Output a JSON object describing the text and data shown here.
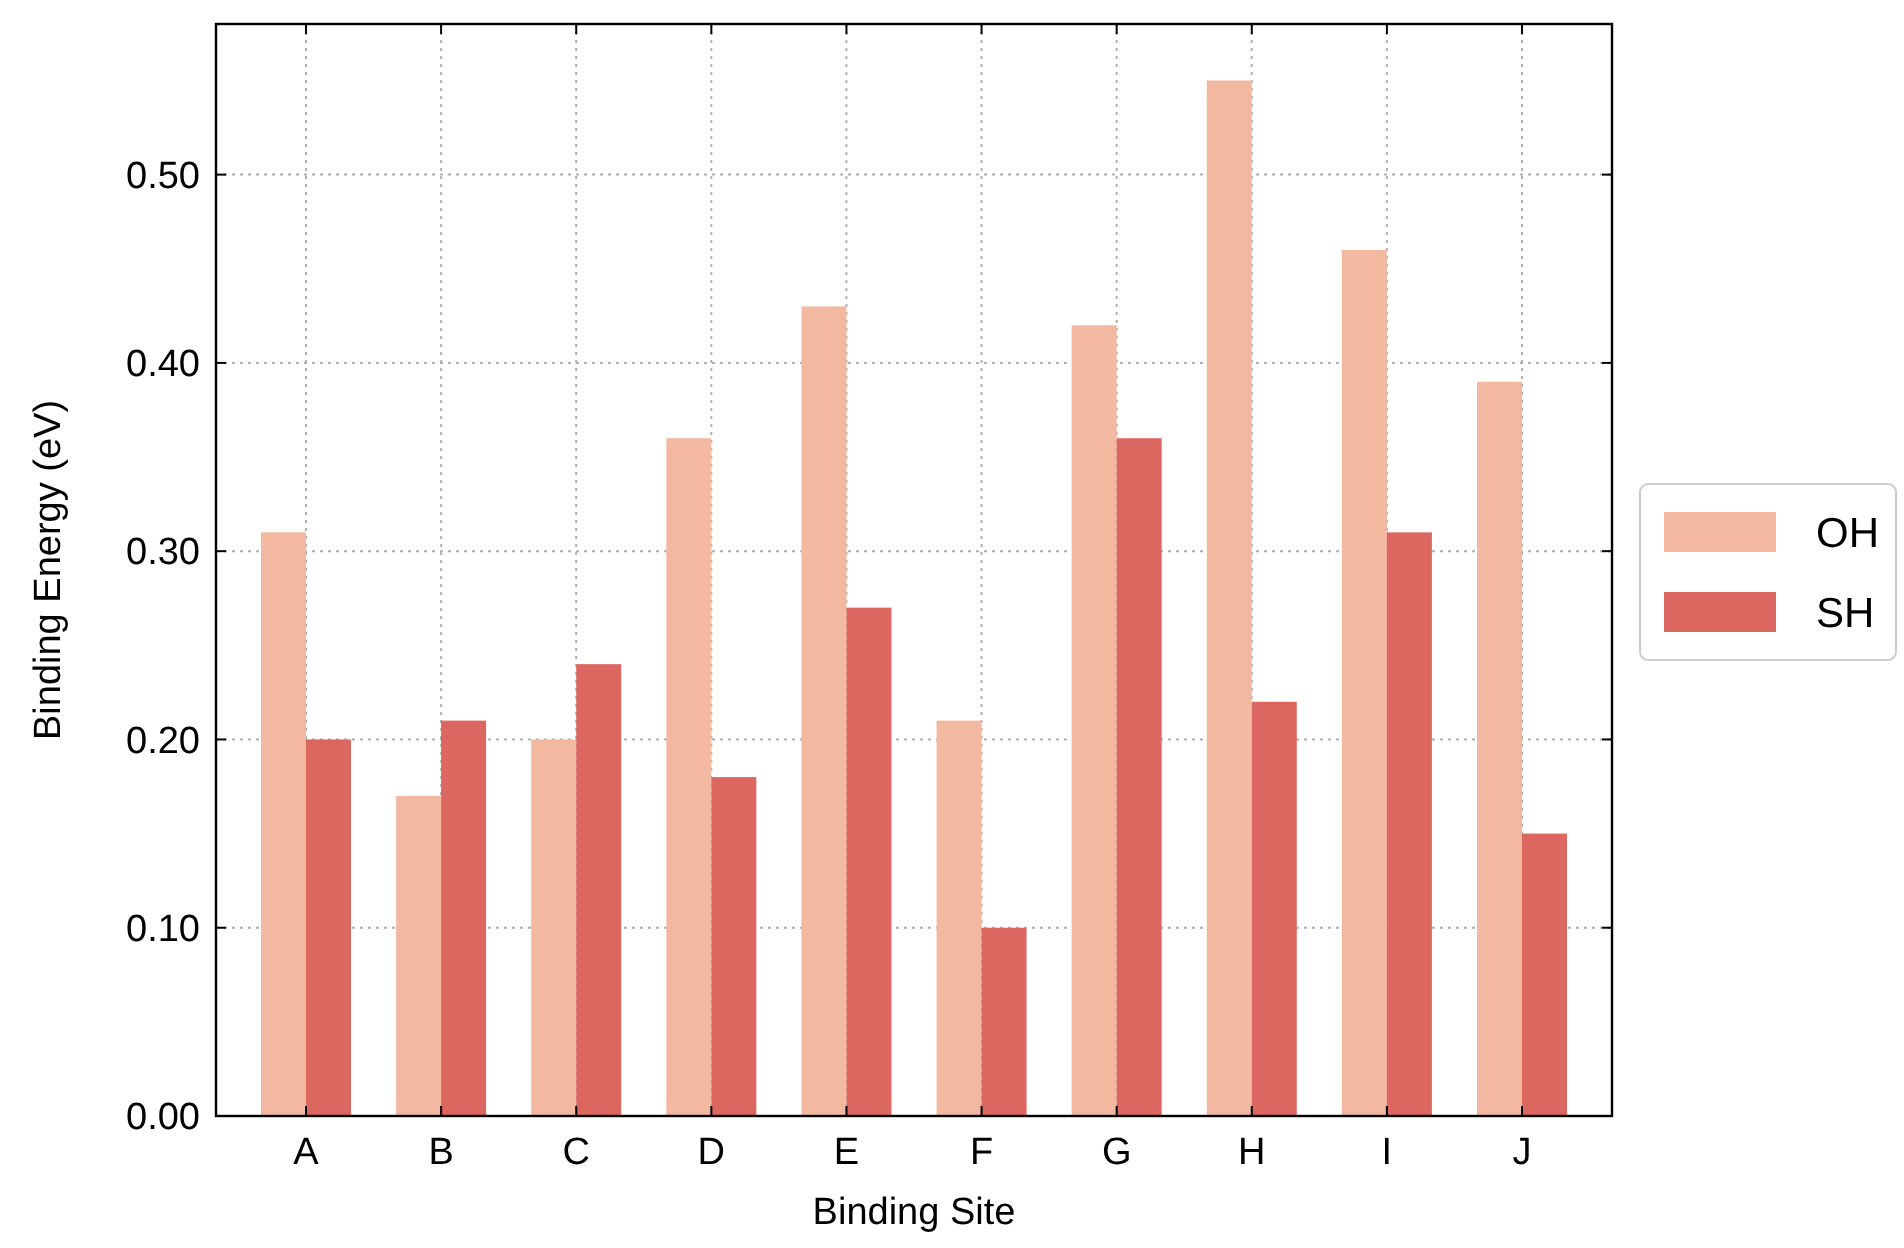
{
  "chart_data": {
    "type": "bar",
    "xlabel": "Binding Site",
    "ylabel": "Binding Energy (eV)",
    "categories": [
      "A",
      "B",
      "C",
      "D",
      "E",
      "F",
      "G",
      "H",
      "I",
      "J"
    ],
    "series": [
      {
        "name": "OH",
        "color": "#f2b8a0",
        "values": [
          0.31,
          0.17,
          0.2,
          0.36,
          0.43,
          0.21,
          0.42,
          0.55,
          0.46,
          0.39
        ]
      },
      {
        "name": "SH",
        "color": "#dc6660",
        "values": [
          0.2,
          0.21,
          0.24,
          0.18,
          0.27,
          0.1,
          0.36,
          0.22,
          0.31,
          0.15
        ]
      }
    ],
    "ylim": [
      0,
      0.58
    ],
    "yticks": [
      {
        "value": 0,
        "label": "0.00"
      },
      {
        "value": 0.1,
        "label": "0.10"
      },
      {
        "value": 0.2,
        "label": "0.20"
      },
      {
        "value": 0.3,
        "label": "0.30"
      },
      {
        "value": 0.4,
        "label": "0.40"
      },
      {
        "value": 0.5,
        "label": "0.50"
      }
    ],
    "grid": true,
    "legend": "right"
  }
}
